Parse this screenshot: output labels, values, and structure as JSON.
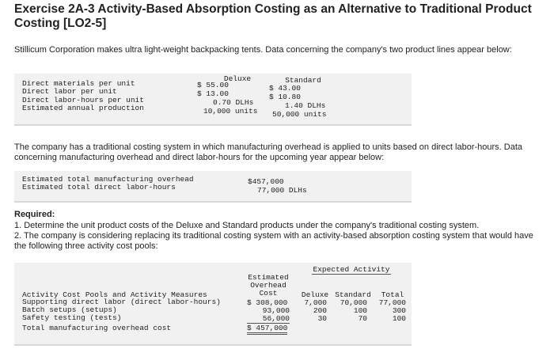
{
  "header": {
    "title": "Exercise 2A-3 Activity-Based Absorption Costing as an Alternative to Traditional Product Costing [LO2-5]"
  },
  "intro": "Stillicum Corporation makes ultra light-weight backpacking tents. Data concerning the company's two product lines appear below:",
  "product_table": {
    "columns": [
      "Deluxe",
      "Standard"
    ],
    "rows": [
      [
        "Direct materials per unit",
        "$ 55.00",
        "$ 43.00"
      ],
      [
        "Direct labor per unit",
        "$ 13.00",
        "$ 10.80"
      ],
      [
        "Direct labor-hours per unit",
        "0.70 DLHs",
        "1.40 DLHs"
      ],
      [
        "Estimated annual production",
        "10,000 units",
        "50,000 units"
      ]
    ]
  },
  "overhead_paragraph": "The company has a traditional costing system in which manufacturing overhead is applied to units based on direct labor-hours. Data concerning manufacturing overhead and direct labor-hours for the upcoming year appear below:",
  "overhead_table": {
    "rows": [
      [
        "Estimated total manufacturing overhead",
        "$457,000"
      ],
      [
        "Estimated total direct labor-hours",
        "77,000 DLHs"
      ]
    ]
  },
  "required": {
    "label": "Required:",
    "items": [
      "1. Determine the unit product costs of the Deluxe and Standard products under the company's traditional costing system.",
      "2. The company is considering replacing its traditional costing system with an activity-based absorption costing system that would have the following three activity cost pools:"
    ]
  },
  "activity_table": {
    "group_header": "Expected Activity",
    "columns": [
      "Estimated Overhead Cost",
      "Deluxe",
      "Standard",
      "Total"
    ],
    "row_header": "Activity Cost Pools and Activity Measures",
    "rows": [
      [
        "Supporting direct labor (direct labor-hours)",
        "$ 308,000",
        "7,000",
        "70,000",
        "77,000"
      ],
      [
        "Batch setups (setups)",
        "93,000",
        "200",
        "100",
        "300"
      ],
      [
        "Safety testing (tests)",
        "56,000",
        "30",
        "70",
        "100"
      ],
      [
        "Total manufacturing overhead cost",
        "$ 457,000"
      ]
    ]
  }
}
